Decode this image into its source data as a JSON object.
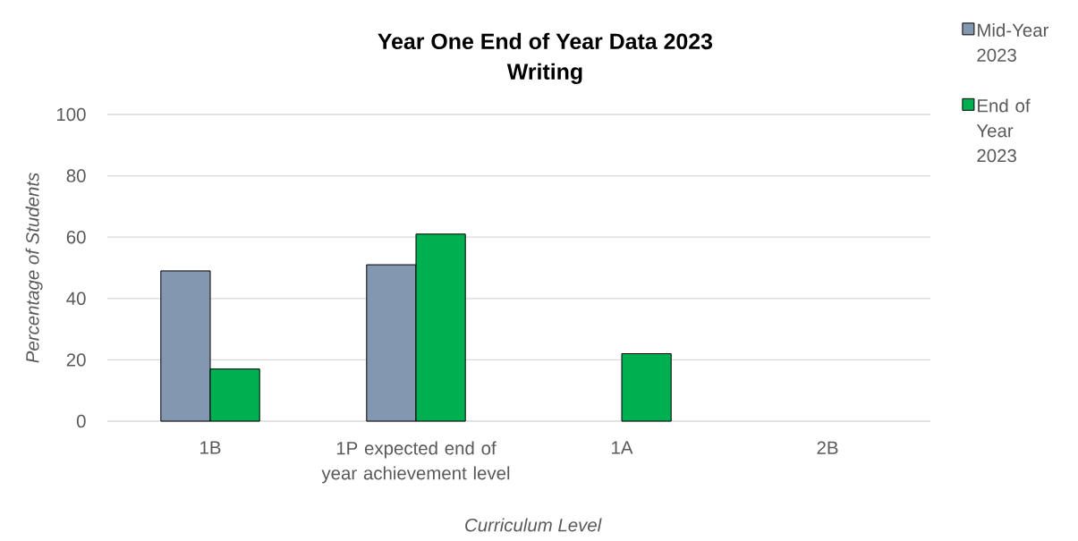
{
  "chart_data": {
    "type": "bar",
    "title": "Year One End of Year Data 2023",
    "subtitle": "Writing",
    "xlabel": "Curriculum Level",
    "ylabel": "Percentage of Students",
    "categories": [
      "1B",
      "1P expected end of year achievement level",
      "1A",
      "2B"
    ],
    "series": [
      {
        "name": "Mid-Year 2023",
        "color": "#8497b0",
        "values": [
          49,
          51,
          null,
          null
        ]
      },
      {
        "name": "End of Year 2023",
        "color": "#00b050",
        "values": [
          17,
          61,
          22,
          null
        ]
      }
    ],
    "ylim": [
      0,
      100
    ],
    "yticks": [
      0,
      20,
      40,
      60,
      80,
      100
    ],
    "grid": "y",
    "legend": "top right"
  }
}
